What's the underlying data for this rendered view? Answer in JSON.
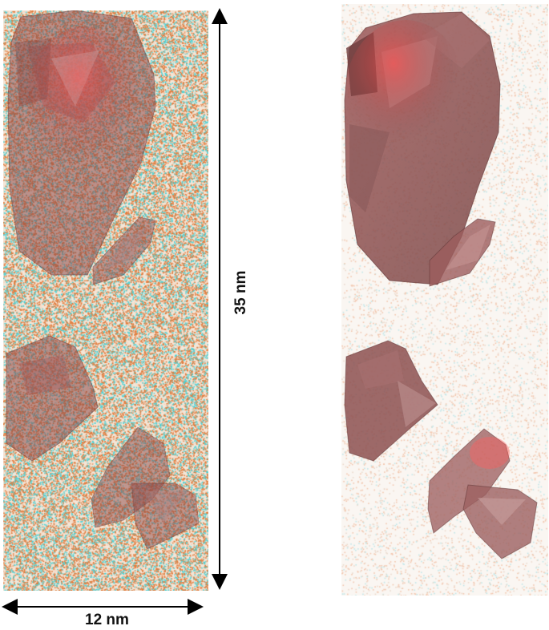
{
  "figure": {
    "height_scale_label": "35 nm",
    "width_scale_label": "12 nm"
  },
  "colors": {
    "orange_atoms": "#e07a3a",
    "cyan_atoms": "#49d1d6",
    "isosurface_fill": "#8c4a4a",
    "isosurface_highlight": "#ff4a4a",
    "arrow": "#000000"
  },
  "panels": [
    {
      "name": "atom-map-with-isosurfaces",
      "point_density": "high"
    },
    {
      "name": "isosurfaces-only",
      "point_density": "low"
    }
  ]
}
